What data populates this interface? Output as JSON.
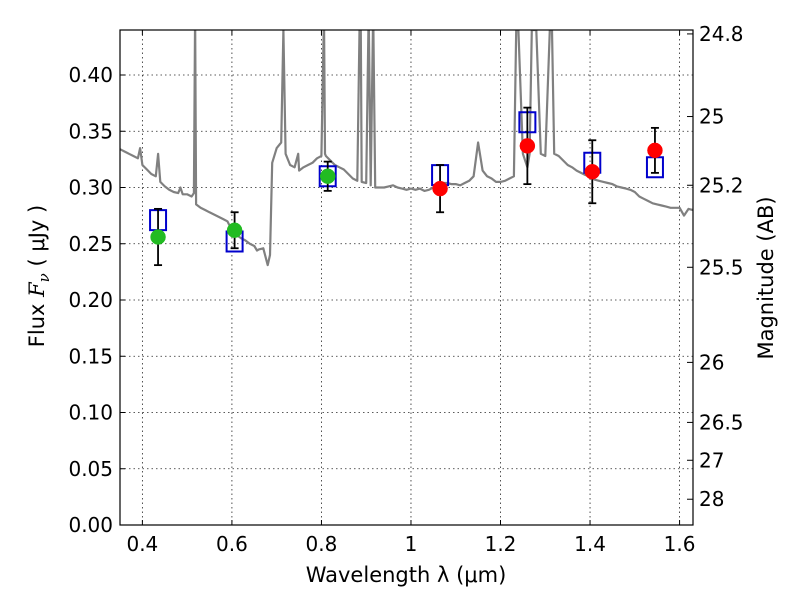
{
  "chart_data": {
    "type": "scatter",
    "xlabel": "Wavelength  λ (μm)",
    "ylabel": "Flux  F_ν  ( μJy )",
    "ylabel_parts": [
      "Flux ",
      "F",
      "ν",
      "  ( μJy )"
    ],
    "y2label": "Magnitude (AB)",
    "xlim": [
      0.35,
      1.63
    ],
    "ylim": [
      0.0,
      0.44
    ],
    "grid": true,
    "x_ticks": [
      0.4,
      0.6,
      0.8,
      1.0,
      1.2,
      1.4,
      1.6
    ],
    "x_tick_labels": [
      "0.4",
      "0.6",
      "0.8",
      "1",
      "1.2",
      "1.4",
      "1.6"
    ],
    "y_ticks": [
      0.0,
      0.05,
      0.1,
      0.15,
      0.2,
      0.25,
      0.3,
      0.35,
      0.4
    ],
    "y_tick_labels": [
      "0.00",
      "0.05",
      "0.10",
      "0.15",
      "0.20",
      "0.25",
      "0.30",
      "0.35",
      "0.40"
    ],
    "mag_ticks": [
      {
        "mag": 24.8,
        "label": "24.8"
      },
      {
        "mag": 25.0,
        "label": "25"
      },
      {
        "mag": 25.2,
        "label": "25.2"
      },
      {
        "mag": 25.5,
        "label": "25.5"
      },
      {
        "mag": 26.0,
        "label": "26"
      },
      {
        "mag": 26.5,
        "label": "26.5"
      },
      {
        "mag": 27.0,
        "label": "27"
      },
      {
        "mag": 28.0,
        "label": "28"
      }
    ],
    "mag_zero_point": 23.9,
    "colors": {
      "sed_model": "#808080",
      "optical_points": "#22bb22",
      "nir_points": "#ff0000",
      "model_boxes": "#0000cc",
      "error_bars": "#000000"
    },
    "observed": [
      {
        "x": 0.435,
        "y": 0.256,
        "yerr_low": 0.025,
        "yerr_high": 0.025,
        "group": "optical"
      },
      {
        "x": 0.606,
        "y": 0.262,
        "yerr_low": 0.016,
        "yerr_high": 0.016,
        "group": "optical"
      },
      {
        "x": 0.814,
        "y": 0.31,
        "yerr_low": 0.013,
        "yerr_high": 0.013,
        "group": "optical"
      },
      {
        "x": 1.065,
        "y": 0.299,
        "yerr_low": 0.021,
        "yerr_high": 0.021,
        "group": "nir"
      },
      {
        "x": 1.26,
        "y": 0.337,
        "yerr_low": 0.034,
        "yerr_high": 0.034,
        "group": "nir"
      },
      {
        "x": 1.405,
        "y": 0.314,
        "yerr_low": 0.028,
        "yerr_high": 0.028,
        "group": "nir"
      },
      {
        "x": 1.545,
        "y": 0.333,
        "yerr_low": 0.02,
        "yerr_high": 0.02,
        "group": "nir"
      }
    ],
    "model_photometry": [
      {
        "x": 0.435,
        "y": 0.271
      },
      {
        "x": 0.606,
        "y": 0.252
      },
      {
        "x": 0.814,
        "y": 0.31
      },
      {
        "x": 1.065,
        "y": 0.311
      },
      {
        "x": 1.26,
        "y": 0.358
      },
      {
        "x": 1.405,
        "y": 0.322
      },
      {
        "x": 1.545,
        "y": 0.318
      }
    ],
    "sed_model": {
      "x": [
        0.35,
        0.36,
        0.37,
        0.38,
        0.39,
        0.395,
        0.4,
        0.41,
        0.42,
        0.43,
        0.435,
        0.44,
        0.45,
        0.46,
        0.47,
        0.48,
        0.485,
        0.49,
        0.5,
        0.51,
        0.515,
        0.5175,
        0.518,
        0.52,
        0.53,
        0.54,
        0.55,
        0.56,
        0.57,
        0.58,
        0.59,
        0.6,
        0.61,
        0.62,
        0.63,
        0.64,
        0.65,
        0.656,
        0.66,
        0.67,
        0.68,
        0.685,
        0.69,
        0.7,
        0.71,
        0.715,
        0.72,
        0.73,
        0.74,
        0.748,
        0.75,
        0.76,
        0.77,
        0.78,
        0.79,
        0.8,
        0.805,
        0.806,
        0.808,
        0.81,
        0.82,
        0.83,
        0.84,
        0.85,
        0.86,
        0.87,
        0.88,
        0.885,
        0.888,
        0.89,
        0.9,
        0.905,
        0.906,
        0.91,
        0.915,
        0.916,
        0.92,
        0.93,
        0.94,
        0.95,
        0.96,
        0.97,
        0.98,
        0.99,
        1.0,
        1.01,
        1.02,
        1.03,
        1.04,
        1.05,
        1.06,
        1.07,
        1.08,
        1.09,
        1.1,
        1.11,
        1.12,
        1.13,
        1.14,
        1.15,
        1.16,
        1.17,
        1.18,
        1.19,
        1.2,
        1.21,
        1.22,
        1.23,
        1.235,
        1.24,
        1.25,
        1.26,
        1.265,
        1.27,
        1.28,
        1.29,
        1.3,
        1.31,
        1.315,
        1.32,
        1.33,
        1.34,
        1.35,
        1.36,
        1.37,
        1.38,
        1.39,
        1.4,
        1.41,
        1.42,
        1.43,
        1.44,
        1.45,
        1.46,
        1.47,
        1.48,
        1.49,
        1.5,
        1.51,
        1.52,
        1.53,
        1.54,
        1.55,
        1.56,
        1.57,
        1.58,
        1.59,
        1.6,
        1.61,
        1.62,
        1.63
      ],
      "y": [
        0.334,
        0.332,
        0.33,
        0.328,
        0.326,
        0.335,
        0.32,
        0.316,
        0.312,
        0.31,
        0.33,
        0.305,
        0.301,
        0.298,
        0.296,
        0.295,
        0.3,
        0.294,
        0.294,
        0.292,
        0.295,
        0.44,
        0.44,
        0.285,
        0.282,
        0.28,
        0.278,
        0.276,
        0.274,
        0.272,
        0.27,
        0.262,
        0.258,
        0.255,
        0.253,
        0.25,
        0.248,
        0.244,
        0.245,
        0.246,
        0.231,
        0.24,
        0.322,
        0.335,
        0.34,
        0.44,
        0.33,
        0.32,
        0.318,
        0.33,
        0.315,
        0.318,
        0.32,
        0.322,
        0.326,
        0.328,
        0.44,
        0.44,
        0.33,
        0.328,
        0.324,
        0.32,
        0.318,
        0.316,
        0.312,
        0.308,
        0.306,
        0.44,
        0.44,
        0.305,
        0.304,
        0.44,
        0.44,
        0.302,
        0.44,
        0.44,
        0.3,
        0.3,
        0.3,
        0.301,
        0.302,
        0.3,
        0.299,
        0.298,
        0.299,
        0.298,
        0.299,
        0.297,
        0.298,
        0.3,
        0.302,
        0.304,
        0.304,
        0.303,
        0.303,
        0.302,
        0.304,
        0.306,
        0.31,
        0.34,
        0.315,
        0.31,
        0.308,
        0.305,
        0.305,
        0.306,
        0.308,
        0.31,
        0.44,
        0.44,
        0.33,
        0.318,
        0.33,
        0.44,
        0.44,
        0.33,
        0.328,
        0.44,
        0.44,
        0.33,
        0.328,
        0.324,
        0.32,
        0.318,
        0.315,
        0.313,
        0.311,
        0.31,
        0.307,
        0.306,
        0.305,
        0.304,
        0.303,
        0.301,
        0.3,
        0.299,
        0.298,
        0.296,
        0.292,
        0.29,
        0.288,
        0.286,
        0.285,
        0.284,
        0.283,
        0.282,
        0.282,
        0.282,
        0.275,
        0.281,
        0.28
      ]
    }
  }
}
